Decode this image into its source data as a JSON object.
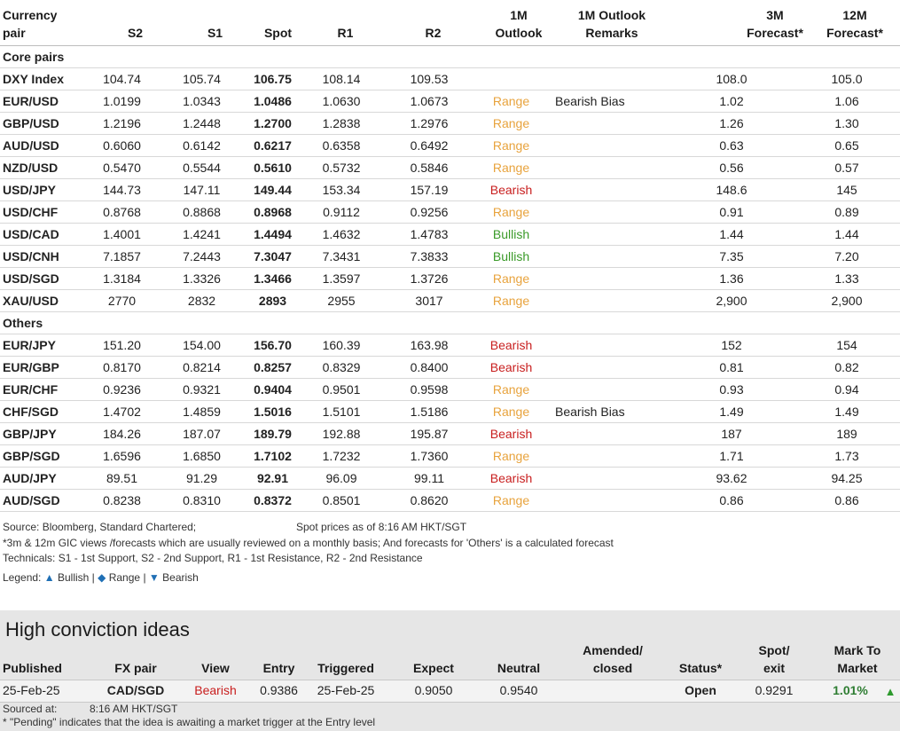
{
  "columns": {
    "pair": [
      "Currency",
      "pair"
    ],
    "s2": "S2",
    "s1": "S1",
    "spot": "Spot",
    "r1": "R1",
    "r2": "R2",
    "outlook": [
      "1M",
      "Outlook"
    ],
    "remarks": [
      "1M Outlook",
      "Remarks"
    ],
    "f3m": [
      "3M",
      "Forecast*"
    ],
    "f12m": [
      "12M",
      "Forecast*"
    ]
  },
  "sections": [
    {
      "title": "Core pairs",
      "rows": [
        {
          "pair": "DXY Index",
          "s2": "104.74",
          "s1": "105.74",
          "spot": "106.75",
          "r1": "108.14",
          "r2": "109.53",
          "outlook": "",
          "remarks": "",
          "f3m": "108.0",
          "f12m": "105.0"
        },
        {
          "pair": "EUR/USD",
          "s2": "1.0199",
          "s1": "1.0343",
          "spot": "1.0486",
          "r1": "1.0630",
          "r2": "1.0673",
          "outlook": "Range",
          "remarks": "Bearish Bias",
          "f3m": "1.02",
          "f12m": "1.06"
        },
        {
          "pair": "GBP/USD",
          "s2": "1.2196",
          "s1": "1.2448",
          "spot": "1.2700",
          "r1": "1.2838",
          "r2": "1.2976",
          "outlook": "Range",
          "remarks": "",
          "f3m": "1.26",
          "f12m": "1.30"
        },
        {
          "pair": "AUD/USD",
          "s2": "0.6060",
          "s1": "0.6142",
          "spot": "0.6217",
          "r1": "0.6358",
          "r2": "0.6492",
          "outlook": "Range",
          "remarks": "",
          "f3m": "0.63",
          "f12m": "0.65"
        },
        {
          "pair": "NZD/USD",
          "s2": "0.5470",
          "s1": "0.5544",
          "spot": "0.5610",
          "r1": "0.5732",
          "r2": "0.5846",
          "outlook": "Range",
          "remarks": "",
          "f3m": "0.56",
          "f12m": "0.57"
        },
        {
          "pair": "USD/JPY",
          "s2": "144.73",
          "s1": "147.11",
          "spot": "149.44",
          "r1": "153.34",
          "r2": "157.19",
          "outlook": "Bearish",
          "remarks": "",
          "f3m": "148.6",
          "f12m": "145"
        },
        {
          "pair": "USD/CHF",
          "s2": "0.8768",
          "s1": "0.8868",
          "spot": "0.8968",
          "r1": "0.9112",
          "r2": "0.9256",
          "outlook": "Range",
          "remarks": "",
          "f3m": "0.91",
          "f12m": "0.89"
        },
        {
          "pair": "USD/CAD",
          "s2": "1.4001",
          "s1": "1.4241",
          "spot": "1.4494",
          "r1": "1.4632",
          "r2": "1.4783",
          "outlook": "Bullish",
          "remarks": "",
          "f3m": "1.44",
          "f12m": "1.44"
        },
        {
          "pair": "USD/CNH",
          "s2": "7.1857",
          "s1": "7.2443",
          "spot": "7.3047",
          "r1": "7.3431",
          "r2": "7.3833",
          "outlook": "Bullish",
          "remarks": "",
          "f3m": "7.35",
          "f12m": "7.20"
        },
        {
          "pair": "USD/SGD",
          "s2": "1.3184",
          "s1": "1.3326",
          "spot": "1.3466",
          "r1": "1.3597",
          "r2": "1.3726",
          "outlook": "Range",
          "remarks": "",
          "f3m": "1.36",
          "f12m": "1.33"
        },
        {
          "pair": "XAU/USD",
          "s2": "2770",
          "s1": "2832",
          "spot": "2893",
          "r1": "2955",
          "r2": "3017",
          "outlook": "Range",
          "remarks": "",
          "f3m": "2,900",
          "f12m": "2,900"
        }
      ]
    },
    {
      "title": "Others",
      "rows": [
        {
          "pair": "EUR/JPY",
          "s2": "151.20",
          "s1": "154.00",
          "spot": "156.70",
          "r1": "160.39",
          "r2": "163.98",
          "outlook": "Bearish",
          "remarks": "",
          "f3m": "152",
          "f12m": "154"
        },
        {
          "pair": "EUR/GBP",
          "s2": "0.8170",
          "s1": "0.8214",
          "spot": "0.8257",
          "r1": "0.8329",
          "r2": "0.8400",
          "outlook": "Bearish",
          "remarks": "",
          "f3m": "0.81",
          "f12m": "0.82"
        },
        {
          "pair": "EUR/CHF",
          "s2": "0.9236",
          "s1": "0.9321",
          "spot": "0.9404",
          "r1": "0.9501",
          "r2": "0.9598",
          "outlook": "Range",
          "remarks": "",
          "f3m": "0.93",
          "f12m": "0.94"
        },
        {
          "pair": "CHF/SGD",
          "s2": "1.4702",
          "s1": "1.4859",
          "spot": "1.5016",
          "r1": "1.5101",
          "r2": "1.5186",
          "outlook": "Range",
          "remarks": "Bearish Bias",
          "f3m": "1.49",
          "f12m": "1.49"
        },
        {
          "pair": "GBP/JPY",
          "s2": "184.26",
          "s1": "187.07",
          "spot": "189.79",
          "r1": "192.88",
          "r2": "195.87",
          "outlook": "Bearish",
          "remarks": "",
          "f3m": "187",
          "f12m": "189"
        },
        {
          "pair": "GBP/SGD",
          "s2": "1.6596",
          "s1": "1.6850",
          "spot": "1.7102",
          "r1": "1.7232",
          "r2": "1.7360",
          "outlook": "Range",
          "remarks": "",
          "f3m": "1.71",
          "f12m": "1.73"
        },
        {
          "pair": "AUD/JPY",
          "s2": "89.51",
          "s1": "91.29",
          "spot": "92.91",
          "r1": "96.09",
          "r2": "99.11",
          "outlook": "Bearish",
          "remarks": "",
          "f3m": "93.62",
          "f12m": "94.25"
        },
        {
          "pair": "AUD/SGD",
          "s2": "0.8238",
          "s1": "0.8310",
          "spot": "0.8372",
          "r1": "0.8501",
          "r2": "0.8620",
          "outlook": "Range",
          "remarks": "",
          "f3m": "0.86",
          "f12m": "0.86"
        }
      ]
    }
  ],
  "notes": {
    "source": "Source: Bloomberg, Standard Chartered;",
    "spot_time": "Spot prices as of 8:16 AM HKT/SGT",
    "footnote": "*3m & 12m GIC views /forecasts which are usually reviewed on a monthly basis; And forecasts for 'Others' is a calculated forecast",
    "technicals": "Technicals: S1 - 1st Support, S2 - 2nd Support, R1 - 1st Resistance, R2 - 2nd Resistance",
    "legend_label": "Legend:",
    "legend_bullish": "Bullish",
    "legend_range": "Range",
    "legend_bearish": "Bearish",
    "sep": "|"
  },
  "high_conviction": {
    "title": "High conviction ideas",
    "headers": {
      "published": "Published",
      "pair": "FX pair",
      "view": "View",
      "entry": "Entry",
      "triggered": "Triggered",
      "expect": "Expect",
      "neutral": "Neutral",
      "amended": [
        "Amended/",
        "closed"
      ],
      "status": "Status*",
      "spot": [
        "Spot/",
        "exit"
      ],
      "mtm": [
        "Mark To",
        "Market"
      ]
    },
    "row": {
      "published": "25-Feb-25",
      "pair": "CAD/SGD",
      "view": "Bearish",
      "entry": "0.9386",
      "triggered": "25-Feb-25",
      "expect": "0.9050",
      "neutral": "0.9540",
      "amended": "",
      "status": "Open",
      "spot": "0.9291",
      "mtm": "1.01%"
    },
    "sourced_label": "Sourced at:",
    "sourced_time": "8:16 AM HKT/SGT",
    "pending_note": "* \"Pending\" indicates that the idea is awaiting a market trigger at the Entry level"
  },
  "colors": {
    "range": "#e8a33d",
    "bearish": "#c81e1e",
    "bullish": "#3a9a28",
    "mtm_arrow": "#2e9a2e",
    "legend_icon": "#1f6fb5"
  }
}
